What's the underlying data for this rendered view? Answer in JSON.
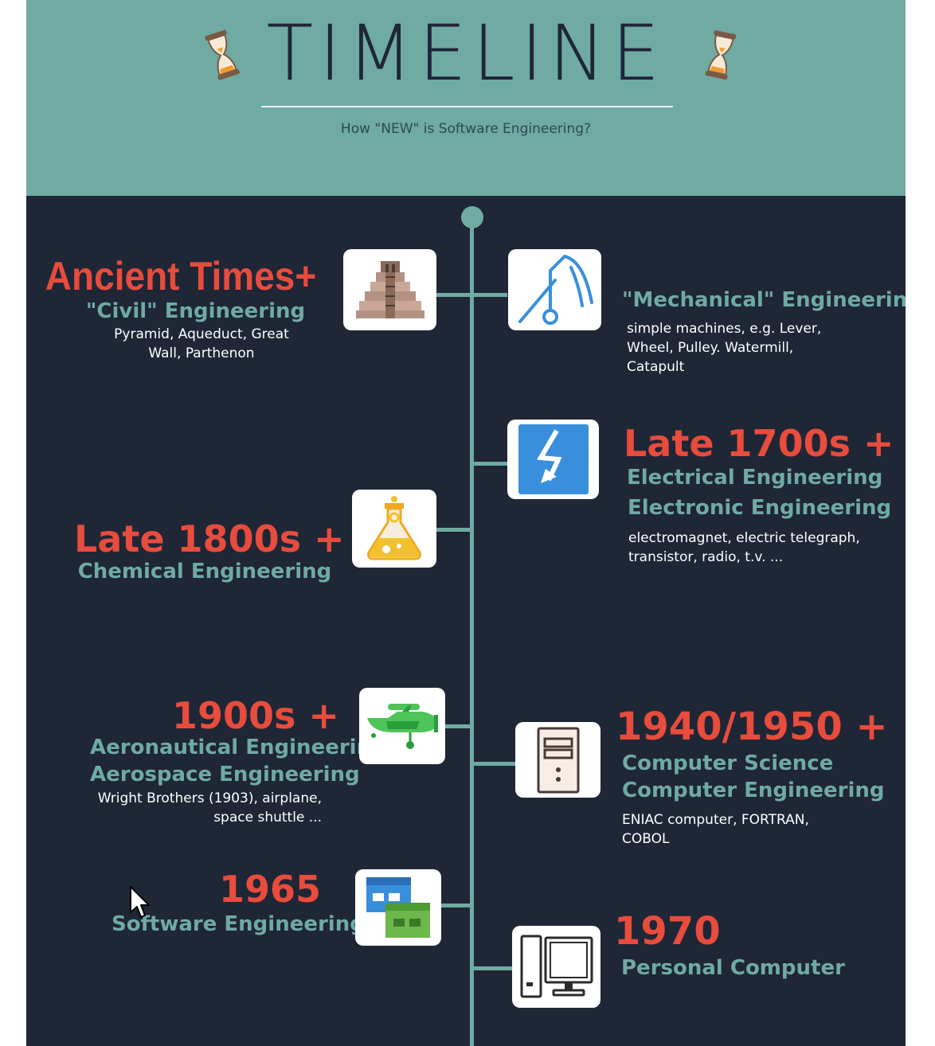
{
  "header": {
    "title": "TIMELINE",
    "subtitle": "How \"NEW\" is Software Engineering?",
    "icon": "hourglass-icon"
  },
  "entries": [
    {
      "era": "Ancient Times+",
      "fields": [
        "\"Civil\" Engineering"
      ],
      "detail": "Pyramid, Aqueduct, Great Wall, Parthenon",
      "icon": "pyramid-icon"
    },
    {
      "era": "",
      "fields": [
        "\"Mechanical\" Engineering"
      ],
      "detail": "simple machines, e.g. Lever, Wheel, Pulley.  Watermill, Catapult",
      "icon": "catapult-icon"
    },
    {
      "era": "Late 1700s +",
      "fields": [
        "Electrical Engineering",
        "Electronic Engineering"
      ],
      "detail": "electromagnet, electric telegraph, transistor, radio, t.v. ...",
      "icon": "lightning-icon"
    },
    {
      "era": "Late 1800s +",
      "fields": [
        "Chemical Engineering"
      ],
      "detail": "",
      "icon": "flask-icon"
    },
    {
      "era": "1900s +",
      "fields": [
        "Aeronautical Engineering",
        "Aerospace Engineering"
      ],
      "detail": "Wright Brothers (1903), airplane, space shuttle ...",
      "icon": "airplane-icon"
    },
    {
      "era": "1940/1950 +",
      "fields": [
        "Computer Science",
        "Computer Engineering"
      ],
      "detail": "ENIAC computer, FORTRAN, COBOL",
      "icon": "computer-tower-icon"
    },
    {
      "era": "1965",
      "fields": [
        "Software Engineering"
      ],
      "detail": "",
      "icon": "app-windows-icon"
    },
    {
      "era": "1970",
      "fields": [
        "Personal Computer"
      ],
      "detail": "",
      "icon": "desktop-computer-icon"
    }
  ],
  "colors": {
    "teal": "#6faaa3",
    "navy": "#1f2636",
    "red": "#e74c3c",
    "white": "#ffffff"
  }
}
